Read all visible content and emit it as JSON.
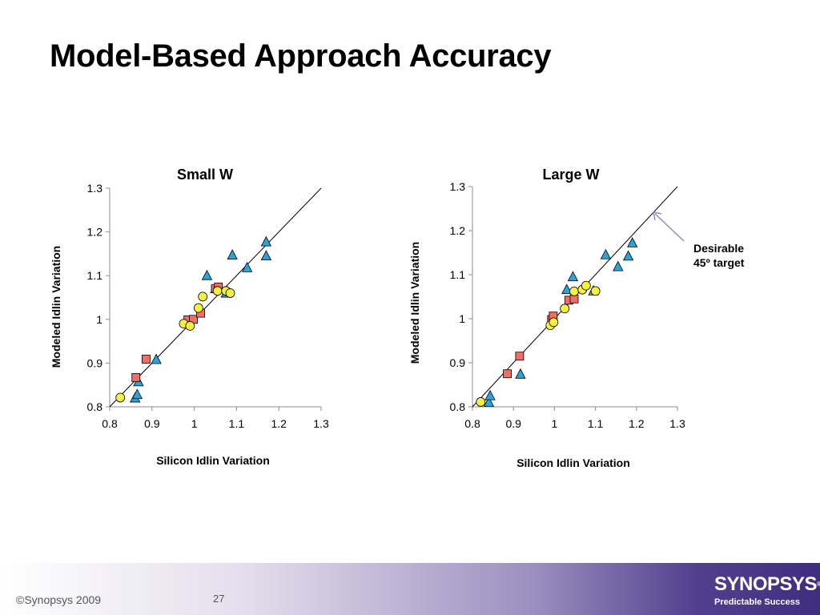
{
  "slide": {
    "title": "Model-Based Approach Accuracy",
    "annotation": [
      "Desirable",
      "45º target"
    ],
    "footer": {
      "copyright": "©Synopsys 2009",
      "page": "27"
    },
    "logo": {
      "word": "SYNOPSYS",
      "reg": "®",
      "tagline": "Predictable Success"
    }
  },
  "colors": {
    "triangle": "#29a3dc",
    "square": "#f06e64",
    "circle": "#f5f03c",
    "outline": "#000000",
    "arrow": "#9688c4"
  },
  "chart_data": [
    {
      "type": "scatter",
      "title": "Small W",
      "xlabel": "Silicon Idlin Variation",
      "ylabel": "Modeled Idlin Variation",
      "xlim": [
        0.8,
        1.3
      ],
      "ylim": [
        0.8,
        1.3
      ],
      "xticks": [
        "0.8",
        "0.9",
        "1",
        "1.1",
        "1.2",
        "1.3"
      ],
      "yticks": [
        "0.8",
        "0.9",
        "1",
        "1.1",
        "1.2",
        "1.3"
      ],
      "reference_line": {
        "from": [
          0.8,
          0.8
        ],
        "to": [
          1.3,
          1.3
        ]
      },
      "series": [
        {
          "marker": "triangle",
          "points": [
            [
              0.86,
              0.82
            ],
            [
              0.865,
              0.828
            ],
            [
              0.868,
              0.857
            ],
            [
              0.91,
              0.908
            ],
            [
              1.03,
              1.1
            ],
            [
              1.05,
              1.07
            ],
            [
              1.075,
              1.06
            ],
            [
              1.09,
              1.147
            ],
            [
              1.125,
              1.118
            ],
            [
              1.17,
              1.177
            ],
            [
              1.17,
              1.145
            ]
          ]
        },
        {
          "marker": "square",
          "points": [
            [
              0.862,
              0.867
            ],
            [
              0.886,
              0.909
            ],
            [
              0.985,
              0.999
            ],
            [
              0.998,
              1.0
            ],
            [
              1.015,
              1.014
            ],
            [
              1.05,
              1.07
            ],
            [
              1.057,
              1.074
            ]
          ]
        },
        {
          "marker": "circle",
          "points": [
            [
              0.825,
              0.821
            ],
            [
              0.975,
              0.99
            ],
            [
              0.99,
              0.985
            ],
            [
              1.01,
              1.026
            ],
            [
              1.02,
              1.052
            ],
            [
              1.055,
              1.065
            ],
            [
              1.075,
              1.065
            ],
            [
              1.085,
              1.06
            ]
          ]
        }
      ]
    },
    {
      "type": "scatter",
      "title": "Large W",
      "xlabel": "Silicon Idlin Variation",
      "ylabel": "Modeled Idlin Variation",
      "xlim": [
        0.8,
        1.3
      ],
      "ylim": [
        0.8,
        1.3
      ],
      "xticks": [
        "0.8",
        "0.9",
        "1",
        "1.1",
        "1.2",
        "1.3"
      ],
      "yticks": [
        "0.8",
        "0.9",
        "1",
        "1.1",
        "1.2",
        "1.3"
      ],
      "reference_line": {
        "from": [
          0.8,
          0.8
        ],
        "to": [
          1.3,
          1.3
        ]
      },
      "series": [
        {
          "marker": "triangle",
          "points": [
            [
              0.84,
              0.81
            ],
            [
              0.843,
              0.825
            ],
            [
              0.917,
              0.874
            ],
            [
              1.03,
              1.066
            ],
            [
              1.045,
              1.095
            ],
            [
              1.095,
              1.063
            ],
            [
              1.125,
              1.145
            ],
            [
              1.155,
              1.118
            ],
            [
              1.18,
              1.142
            ],
            [
              1.19,
              1.172
            ]
          ]
        },
        {
          "marker": "square",
          "points": [
            [
              0.885,
              0.875
            ],
            [
              0.915,
              0.915
            ],
            [
              0.993,
              0.998
            ],
            [
              0.997,
              1.006
            ],
            [
              1.035,
              1.042
            ],
            [
              1.048,
              1.045
            ]
          ]
        },
        {
          "marker": "circle",
          "points": [
            [
              0.82,
              0.811
            ],
            [
              0.99,
              0.985
            ],
            [
              0.998,
              0.992
            ],
            [
              1.025,
              1.023
            ],
            [
              1.048,
              1.062
            ],
            [
              1.068,
              1.066
            ],
            [
              1.077,
              1.075
            ],
            [
              1.1,
              1.063
            ]
          ]
        }
      ]
    }
  ]
}
